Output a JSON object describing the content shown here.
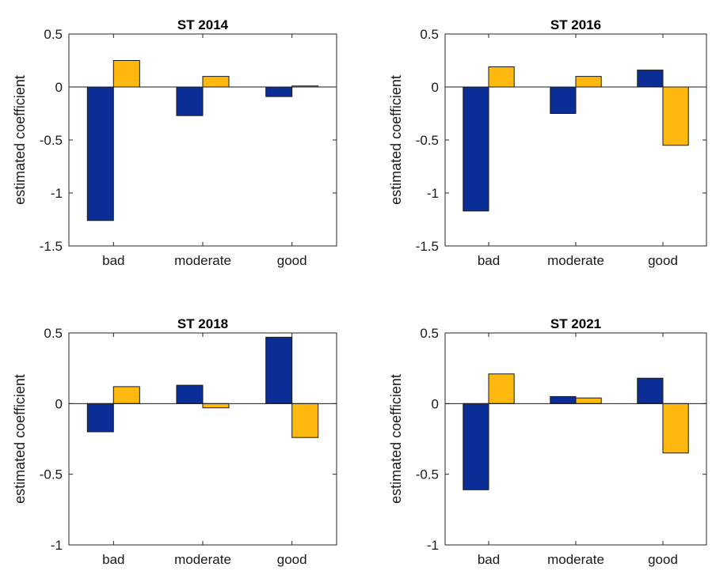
{
  "colors": {
    "series_1": "#0a2d96",
    "series_2": "#ffb80d",
    "axis": "#262626"
  },
  "chart_data": [
    {
      "type": "bar",
      "title": "ST 2014",
      "ylabel": "estimated coefficient",
      "xlabel": "",
      "categories": [
        "bad",
        "moderate",
        "good"
      ],
      "ylim": [
        -1.5,
        0.5
      ],
      "yticks": [
        -1.5,
        -1,
        -0.5,
        0,
        0.5
      ],
      "ytick_labels": [
        "-1.5",
        "-1",
        "-0.5",
        "0",
        "0.5"
      ],
      "series": [
        {
          "values": [
            -1.26,
            -0.27,
            -0.09
          ]
        },
        {
          "values": [
            0.25,
            0.1,
            0.01
          ]
        }
      ]
    },
    {
      "type": "bar",
      "title": "ST 2016",
      "ylabel": "estimated coefficient",
      "xlabel": "",
      "categories": [
        "bad",
        "moderate",
        "good"
      ],
      "ylim": [
        -1.5,
        0.5
      ],
      "yticks": [
        -1.5,
        -1,
        -0.5,
        0,
        0.5
      ],
      "ytick_labels": [
        "-1.5",
        "-1",
        "-0.5",
        "0",
        "0.5"
      ],
      "series": [
        {
          "values": [
            -1.17,
            -0.25,
            0.16
          ]
        },
        {
          "values": [
            0.19,
            0.1,
            -0.55
          ]
        }
      ]
    },
    {
      "type": "bar",
      "title": "ST 2018",
      "ylabel": "estimated coefficient",
      "xlabel": "",
      "categories": [
        "bad",
        "moderate",
        "good"
      ],
      "ylim": [
        -1,
        0.5
      ],
      "yticks": [
        -1,
        -0.5,
        0,
        0.5
      ],
      "ytick_labels": [
        "-1",
        "-0.5",
        "0",
        "0.5"
      ],
      "series": [
        {
          "values": [
            -0.2,
            0.13,
            0.47
          ]
        },
        {
          "values": [
            0.12,
            -0.03,
            -0.24
          ]
        }
      ]
    },
    {
      "type": "bar",
      "title": "ST 2021",
      "ylabel": "estimated coefficient",
      "xlabel": "",
      "categories": [
        "bad",
        "moderate",
        "good"
      ],
      "ylim": [
        -1,
        0.5
      ],
      "yticks": [
        -1,
        -0.5,
        0,
        0.5
      ],
      "ytick_labels": [
        "-1",
        "-0.5",
        "0",
        "0.5"
      ],
      "series": [
        {
          "values": [
            -0.61,
            0.05,
            0.18
          ]
        },
        {
          "values": [
            0.21,
            0.04,
            -0.35
          ]
        }
      ]
    }
  ]
}
